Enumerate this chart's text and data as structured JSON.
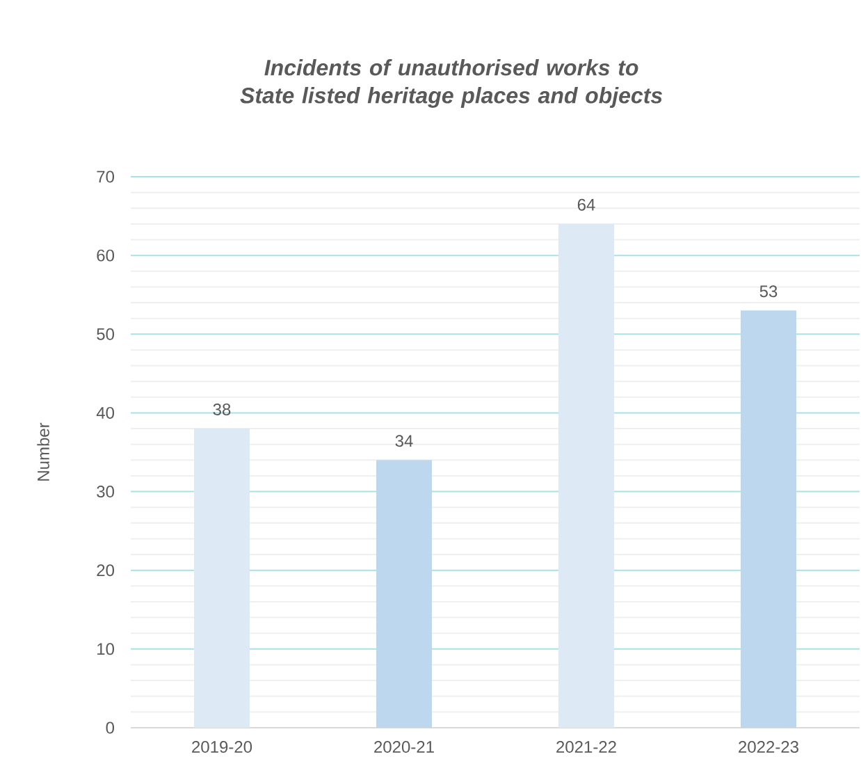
{
  "chart_data": {
    "type": "bar",
    "title": "Incidents of unauthorised works to State listed heritage places and objects",
    "ylabel": "Number",
    "categories": [
      "2019-20",
      "2020-21",
      "2021-22",
      "2022-23"
    ],
    "values": [
      38,
      34,
      64,
      53
    ],
    "colors": [
      "#ddeaf6",
      "#bdd7ee",
      "#ddeaf6",
      "#bdd7ee"
    ],
    "ylim": [
      0,
      70
    ],
    "yticks": [
      0,
      10,
      20,
      30,
      40,
      50,
      60,
      70
    ],
    "grid": "y",
    "data_labels": true
  }
}
